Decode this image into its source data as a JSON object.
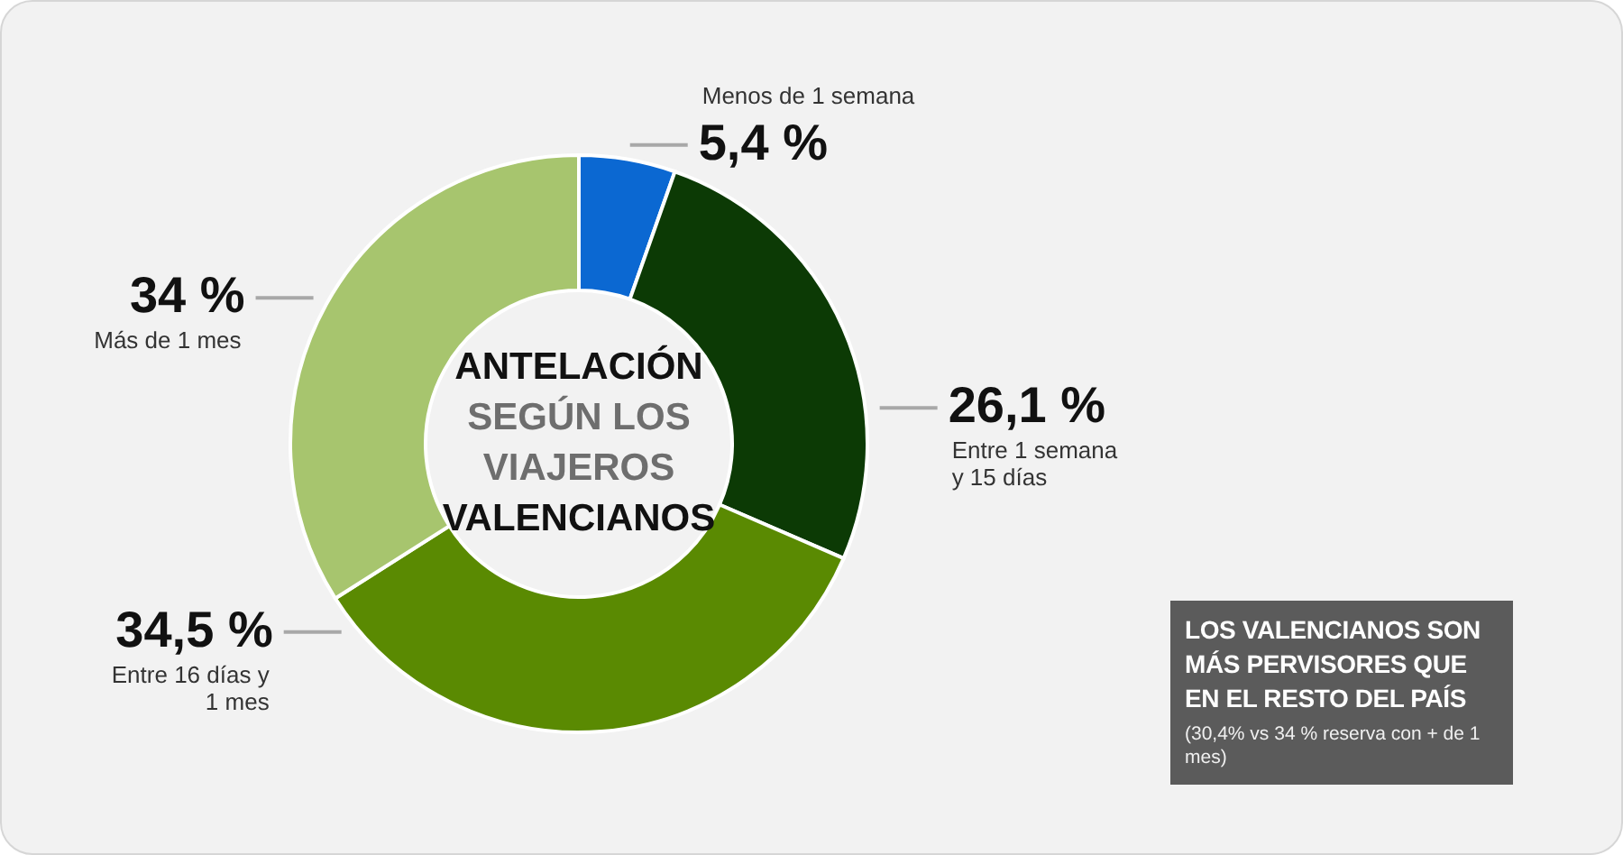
{
  "chart_data": {
    "type": "donut",
    "title": "ANTELACIÓN",
    "subtitle": "SEGÚN LOS VIAJEROS VALENCIANOS",
    "categories": [
      "Menos de 1 semana",
      "Entre 1 semana y 15 días",
      "Entre 16 días y 1 mes",
      "Más de 1 mes"
    ],
    "values": [
      5.4,
      26.1,
      34.5,
      34
    ],
    "value_labels": [
      "5,4 %",
      "26,1 %",
      "34,5 %",
      "34 %"
    ],
    "colors": [
      "#0b68d2",
      "#0c3a05",
      "#5a8a02",
      "#a7c56e"
    ],
    "annotations": [
      "LOS VALENCIANOS SON MÁS PERVISORES QUE EN EL RESTO DEL PAÍS",
      "(30,4% vs 34 % reserva con + de 1 mes)"
    ]
  }
}
